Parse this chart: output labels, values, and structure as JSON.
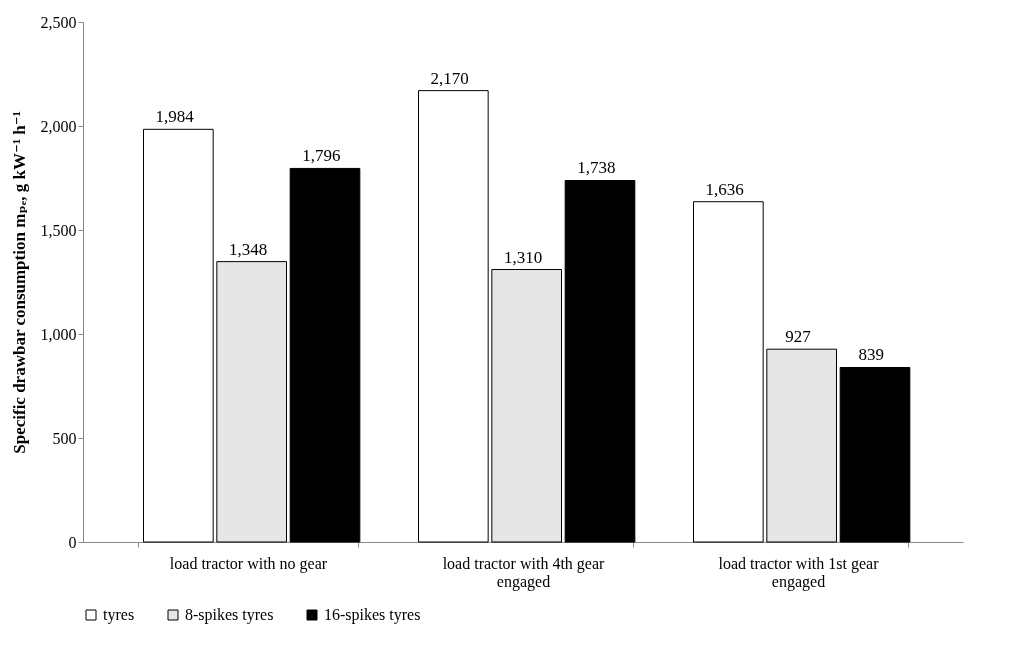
{
  "chart_data": {
    "type": "bar",
    "ylabel": "Specific drawbar consumption mₚₑ, g kW⁻¹ h⁻¹",
    "categories": [
      "load tractor with no gear",
      "load tractor with 4th gear engaged",
      "load tractor with 1st gear engaged"
    ],
    "series": [
      {
        "name": "tyres",
        "color": "#ffffff",
        "values": [
          1984,
          2170,
          1636
        ],
        "value_labels": [
          "1,984",
          "2,170",
          "1,636"
        ]
      },
      {
        "name": "8-spikes tyres",
        "color": "#e6e6e6",
        "values": [
          1348,
          1310,
          927
        ],
        "value_labels": [
          "1,348",
          "1,310",
          "927"
        ]
      },
      {
        "name": "16-spikes tyres",
        "color": "#000000",
        "values": [
          1796,
          1738,
          839
        ],
        "value_labels": [
          "1,796",
          "1,738",
          "839"
        ]
      }
    ],
    "ylim": [
      0,
      2500
    ],
    "yticks": [
      {
        "value": 0,
        "label": "0"
      },
      {
        "value": 500,
        "label": "500"
      },
      {
        "value": 1000,
        "label": "1,000"
      },
      {
        "value": 1500,
        "label": "1,500"
      },
      {
        "value": 2000,
        "label": "2,000"
      },
      {
        "value": 2500,
        "label": "2,500"
      }
    ],
    "grid": false,
    "legend": "bottom"
  }
}
